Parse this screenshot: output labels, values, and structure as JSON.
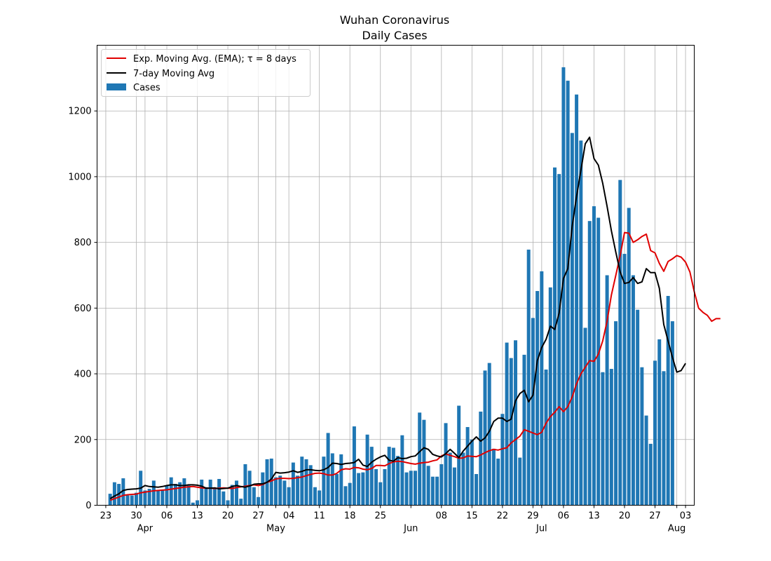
{
  "chart_data": {
    "type": "bar",
    "title": "Wuhan Coronavirus",
    "subtitle": "Daily Cases",
    "xlabel": "",
    "ylabel": "",
    "x_start": "2020-03-24",
    "x_range": [
      "2020-03-21",
      "2020-08-05"
    ],
    "ylim": [
      0,
      1400
    ],
    "y_ticks": [
      0,
      200,
      400,
      600,
      800,
      1000,
      1200
    ],
    "grid": true,
    "legend_position": "top-left",
    "x_tick_labels": [
      {
        "date": "2020-03-23",
        "label": "23"
      },
      {
        "date": "2020-03-30",
        "label": "30"
      },
      {
        "date": "2020-04-06",
        "label": "06"
      },
      {
        "date": "2020-04-13",
        "label": "13"
      },
      {
        "date": "2020-04-20",
        "label": "20"
      },
      {
        "date": "2020-04-27",
        "label": "27"
      },
      {
        "date": "2020-05-04",
        "label": "04"
      },
      {
        "date": "2020-05-11",
        "label": "11"
      },
      {
        "date": "2020-05-18",
        "label": "18"
      },
      {
        "date": "2020-05-25",
        "label": "25"
      },
      {
        "date": "2020-06-08",
        "label": "08"
      },
      {
        "date": "2020-06-15",
        "label": "15"
      },
      {
        "date": "2020-06-22",
        "label": "22"
      },
      {
        "date": "2020-06-29",
        "label": "29"
      },
      {
        "date": "2020-07-06",
        "label": "06"
      },
      {
        "date": "2020-07-13",
        "label": "13"
      },
      {
        "date": "2020-07-20",
        "label": "20"
      },
      {
        "date": "2020-07-27",
        "label": "27"
      },
      {
        "date": "2020-08-03",
        "label": "03"
      }
    ],
    "month_labels": [
      {
        "date": "2020-04-01",
        "label": "Apr"
      },
      {
        "date": "2020-05-01",
        "label": "May"
      },
      {
        "date": "2020-06-01",
        "label": "Jun"
      },
      {
        "date": "2020-07-01",
        "label": "Jul"
      },
      {
        "date": "2020-08-01",
        "label": "Aug"
      }
    ],
    "series": [
      {
        "name": "Cases",
        "kind": "bar",
        "color": "#1f77b4",
        "values": [
          35,
          70,
          65,
          82,
          30,
          30,
          38,
          105,
          45,
          50,
          75,
          45,
          45,
          60,
          85,
          65,
          70,
          82,
          60,
          8,
          15,
          78,
          55,
          78,
          50,
          80,
          42,
          15,
          62,
          75,
          20,
          125,
          105,
          55,
          25,
          100,
          140,
          142,
          85,
          90,
          75,
          55,
          130,
          90,
          148,
          140,
          122,
          55,
          45,
          148,
          220,
          158,
          95,
          155,
          58,
          68,
          240,
          98,
          100,
          215,
          178,
          110,
          70,
          110,
          178,
          175,
          150,
          213,
          100,
          105,
          105,
          282,
          260,
          120,
          87,
          87,
          125,
          250,
          160,
          115,
          303,
          160,
          238,
          200,
          95,
          285,
          410,
          433,
          172,
          142,
          278,
          495,
          448,
          502,
          145,
          458,
          778,
          570,
          652,
          712,
          413,
          663,
          1028,
          1008,
          1333,
          1292,
          1133,
          1250,
          1110,
          540,
          865,
          910,
          875,
          405,
          700,
          415,
          560,
          990,
          765,
          905,
          700,
          595,
          420,
          273,
          187,
          440,
          505,
          408,
          637,
          560
        ]
      },
      {
        "name": "Exp. Moving Avg. (EMA); τ = 8 days",
        "kind": "line",
        "color": "#e00000",
        "values": [
          15,
          20,
          25,
          30,
          32,
          33,
          34,
          38,
          40,
          42,
          44,
          45,
          46,
          47,
          49,
          51,
          53,
          55,
          56,
          57,
          55,
          53,
          52,
          52,
          51,
          52,
          53,
          52,
          51,
          54,
          56,
          58,
          60,
          62,
          60,
          63,
          70,
          74,
          80,
          82,
          82,
          81,
          82,
          84,
          86,
          90,
          94,
          97,
          98,
          96,
          92,
          92,
          97,
          108,
          111,
          110,
          115,
          114,
          110,
          108,
          112,
          121,
          121,
          120,
          127,
          132,
          134,
          133,
          130,
          127,
          125,
          128,
          130,
          131,
          135,
          138,
          150,
          156,
          152,
          148,
          143,
          144,
          150,
          149,
          148,
          153,
          160,
          166,
          170,
          168,
          172,
          175,
          190,
          200,
          210,
          230,
          225,
          220,
          215,
          222,
          250,
          270,
          283,
          300,
          285,
          300,
          330,
          370,
          400,
          420,
          440,
          438,
          460,
          500,
          560,
          640,
          700,
          760,
          830,
          828,
          800,
          808,
          818,
          825,
          775,
          768,
          736,
          712,
          742,
          750,
          760,
          755,
          740,
          710,
          650,
          600,
          587,
          578,
          560,
          568,
          568
        ]
      },
      {
        "name": "7-day Moving Avg",
        "kind": "line",
        "color": "#000000",
        "values": [
          20,
          28,
          35,
          45,
          48,
          49,
          50,
          52,
          60,
          57,
          56,
          55,
          57,
          60,
          62,
          62,
          60,
          60,
          62,
          62,
          61,
          58,
          52,
          52,
          53,
          50,
          51,
          52,
          57,
          60,
          57,
          55,
          59,
          64,
          65,
          65,
          70,
          80,
          100,
          98,
          99,
          101,
          105,
          100,
          103,
          108,
          108,
          106,
          105,
          108,
          115,
          128,
          127,
          124,
          127,
          128,
          130,
          140,
          122,
          118,
          131,
          140,
          147,
          152,
          137,
          134,
          145,
          142,
          143,
          148,
          150,
          163,
          175,
          170,
          155,
          150,
          147,
          157,
          170,
          158,
          145,
          165,
          180,
          195,
          208,
          195,
          205,
          225,
          255,
          265,
          265,
          255,
          262,
          318,
          340,
          350,
          315,
          335,
          440,
          480,
          505,
          545,
          535,
          585,
          690,
          720,
          850,
          940,
          1020,
          1100,
          1120,
          1055,
          1035,
          980,
          910,
          835,
          770,
          710,
          675,
          678,
          693,
          675,
          680,
          720,
          708,
          708,
          660,
          550,
          500,
          450,
          405,
          410,
          432
        ]
      }
    ]
  }
}
